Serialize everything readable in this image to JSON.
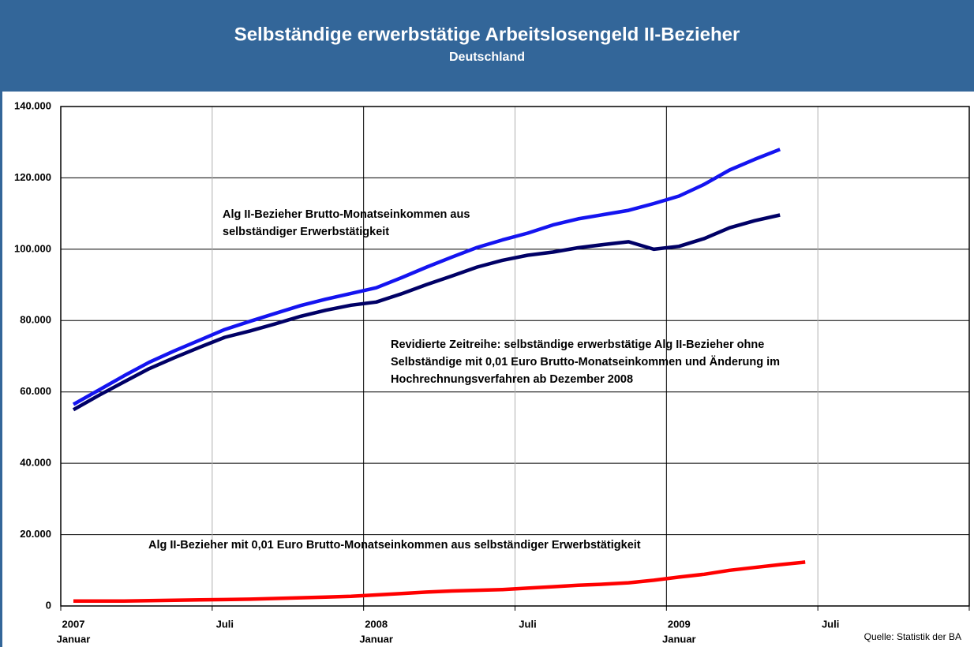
{
  "chart_data": {
    "type": "line",
    "title": "Selbständige erwerbstätige Arbeitslosengeld II-Bezieher",
    "subtitle": "Deutschland",
    "source": "Quelle: Statistik der BA",
    "annotations": [
      [
        "Alg II-Bezieher Brutto-Monatseinkommen aus",
        "selbständiger Erwerbstätigkeit"
      ],
      [
        "Revidierte Zeitreihe: selbständige erwerbstätige Alg II-Bezieher ohne",
        "Selbständige mit 0,01 Euro Brutto-Monatseinkommen und Änderung im",
        "Hochrechnungsverfahren ab Dezember 2008"
      ],
      [
        "Alg II-Bezieher mit 0,01 Euro Brutto-Monatseinkommen aus selbständiger Erwerbstätigkeit"
      ]
    ],
    "x": [
      "2007-01",
      "2007-02",
      "2007-03",
      "2007-04",
      "2007-05",
      "2007-06",
      "2007-07",
      "2007-08",
      "2007-09",
      "2007-10",
      "2007-11",
      "2007-12",
      "2008-01",
      "2008-02",
      "2008-03",
      "2008-04",
      "2008-05",
      "2008-06",
      "2008-07",
      "2008-08",
      "2008-09",
      "2008-10",
      "2008-11",
      "2008-12",
      "2009-01",
      "2009-02",
      "2009-03",
      "2009-04",
      "2009-05",
      "2009-06"
    ],
    "series": [
      {
        "color": "#1414f0",
        "values": [
          56500,
          60500,
          64500,
          68300,
          71500,
          74500,
          77500,
          79800,
          82000,
          84200,
          86000,
          87600,
          89200,
          92000,
          95000,
          97800,
          100500,
          102600,
          104500,
          106800,
          108500,
          109700,
          110900,
          112800,
          114900,
          118200,
          122200,
          125200,
          128000,
          null
        ]
      },
      {
        "color": "#000066",
        "values": [
          55000,
          59000,
          62800,
          66500,
          69600,
          72500,
          75300,
          77100,
          79100,
          81200,
          82900,
          84300,
          85200,
          87500,
          90100,
          92500,
          95000,
          96900,
          98300,
          99200,
          100400,
          101300,
          102100,
          100000,
          100800,
          103000,
          106000,
          108000,
          109600,
          null
        ]
      },
      {
        "color": "#ff0000",
        "values": [
          1400,
          1400,
          1400,
          1500,
          1600,
          1700,
          1800,
          1900,
          2100,
          2300,
          2500,
          2700,
          3100,
          3500,
          3900,
          4200,
          4400,
          4600,
          5000,
          5400,
          5800,
          6100,
          6500,
          7200,
          8100,
          8900,
          10000,
          10800,
          11600,
          12300
        ]
      }
    ],
    "xlim": [
      "2007-01",
      "2010-01"
    ],
    "xticks": [
      {
        "value": "2007-01",
        "label": [
          "2007",
          "Januar"
        ]
      },
      {
        "value": "2007-07",
        "label": "Juli"
      },
      {
        "value": "2008-01",
        "label": [
          "2008",
          "Januar"
        ]
      },
      {
        "value": "2008-07",
        "label": "Juli"
      },
      {
        "value": "2009-01",
        "label": [
          "2009",
          "Januar"
        ]
      },
      {
        "value": "2009-07",
        "label": "Juli"
      }
    ],
    "ylim": [
      0,
      140000
    ],
    "yticks": [
      0,
      {
        "value": 20000,
        "label": "20.000"
      },
      {
        "value": 40000,
        "label": "40.000"
      },
      {
        "value": 60000,
        "label": "60.000"
      },
      {
        "value": 80000,
        "label": "80.000"
      },
      {
        "value": 100000,
        "label": "100.000"
      },
      {
        "value": 120000,
        "label": "120.000"
      },
      {
        "value": 140000,
        "label": "140.000"
      }
    ],
    "grid": true
  }
}
